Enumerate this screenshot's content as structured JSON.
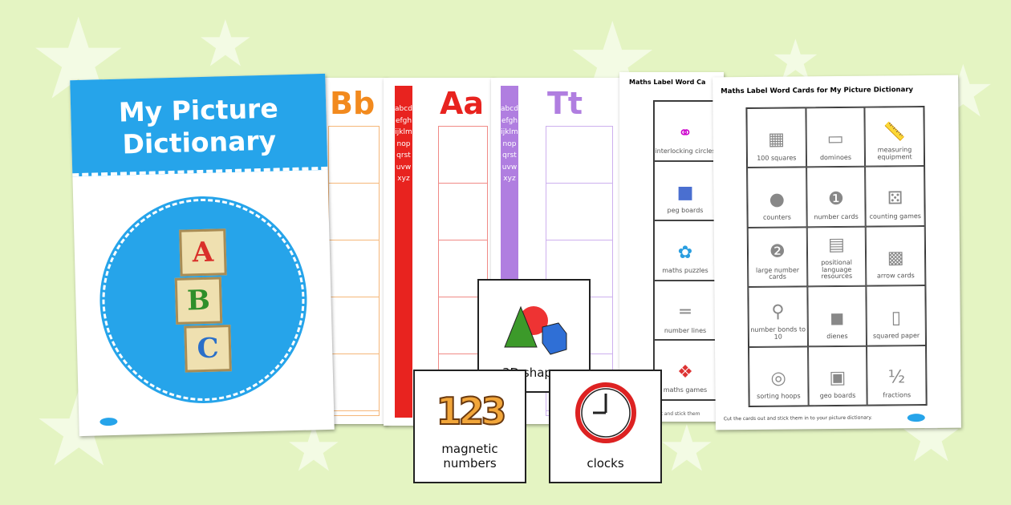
{
  "cover": {
    "title_line1": "My Picture",
    "title_line2": "Dictionary",
    "blocks": [
      "A",
      "B",
      "C"
    ],
    "colors": {
      "blue": "#26a4ea",
      "block_letters": [
        "#d9302a",
        "#2f8f2a",
        "#2a6fc9"
      ]
    }
  },
  "letter_sheets": [
    {
      "letter": "Bb",
      "color": "#f28a1e"
    },
    {
      "letter": "Aa",
      "color": "#e8231f",
      "alphabet": "abcdefghijklmnopqrstuvwxyz"
    },
    {
      "letter": "Tt",
      "color": "#b07ee0",
      "alphabet": "abcdefghijklmnopqrstuvwxyz"
    }
  ],
  "label_sheet_back": {
    "title": "Maths Label Word Ca",
    "items": [
      "interlocking circles",
      "peg boards",
      "maths puzzles",
      "number lines",
      "maths games"
    ],
    "footer": "out and stick them"
  },
  "label_sheet_front": {
    "title": "Maths Label Word Cards for My Picture Dictionary",
    "items": [
      "100 squares",
      "dominoes",
      "measuring equipment",
      "counters",
      "number cards",
      "counting games",
      "large number cards",
      "positional language resources",
      "arrow cards",
      "number bonds to 10",
      "dienes",
      "squared paper",
      "sorting hoops",
      "geo boards",
      "fractions"
    ],
    "footer": "Cut the cards out and stick them in to your picture dictionary."
  },
  "cards": [
    {
      "label": "3D shapes",
      "icon": "3d-shapes-icon"
    },
    {
      "label": "magnetic numbers",
      "digits": "123",
      "icon": "magnetic-numbers-icon"
    },
    {
      "label": "clocks",
      "icon": "clock-icon"
    }
  ]
}
